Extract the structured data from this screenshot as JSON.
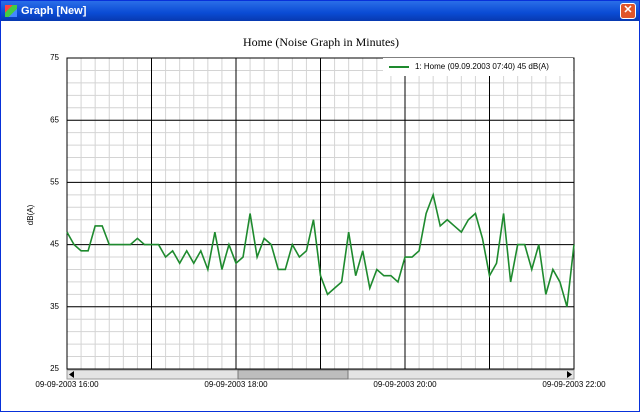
{
  "window": {
    "title": "Graph [New]"
  },
  "chart_data": {
    "type": "line",
    "title": "Home (Noise Graph in Minutes)",
    "y_label": "dB(A)",
    "x": [
      960,
      965,
      970,
      975,
      980,
      985,
      990,
      995,
      1000,
      1005,
      1010,
      1015,
      1020,
      1025,
      1030,
      1035,
      1040,
      1045,
      1050,
      1055,
      1060,
      1065,
      1070,
      1075,
      1080,
      1085,
      1090,
      1095,
      1100,
      1105,
      1110,
      1115,
      1120,
      1125,
      1130,
      1135,
      1140,
      1145,
      1150,
      1155,
      1160,
      1165,
      1170,
      1175,
      1180,
      1185,
      1190,
      1195,
      1200,
      1205,
      1210,
      1215,
      1220,
      1225,
      1230,
      1235,
      1240,
      1245,
      1250,
      1255,
      1260,
      1265,
      1270,
      1275,
      1280,
      1285,
      1290,
      1295,
      1300,
      1305,
      1310,
      1315,
      1320
    ],
    "series": [
      {
        "name": "1: Home  (09.09.2003 07:40) 45 dB(A)",
        "color": "#1e8a2e",
        "values": [
          47,
          45,
          44,
          44,
          48,
          48,
          45,
          45,
          45,
          45,
          46,
          45,
          45,
          45,
          43,
          44,
          42,
          44,
          42,
          44,
          41,
          47,
          41,
          45,
          42,
          43,
          50,
          43,
          46,
          45,
          41,
          41,
          45,
          43,
          44,
          49,
          40,
          37,
          38,
          39,
          47,
          40,
          44,
          38,
          41,
          40,
          40,
          39,
          43,
          43,
          44,
          50,
          53,
          48,
          49,
          48,
          47,
          49,
          50,
          46,
          40,
          42,
          50,
          39,
          45,
          45,
          41,
          45,
          37,
          41,
          39,
          35,
          45
        ]
      }
    ],
    "xlim": [
      960,
      1320
    ],
    "xticks": [
      {
        "value": 960,
        "label": "09-09-2003 16:00"
      },
      {
        "value": 1080,
        "label": "09-09-2003 18:00"
      },
      {
        "value": 1200,
        "label": "09-09-2003 20:00"
      },
      {
        "value": 1320,
        "label": "09-09-2003 22:00"
      }
    ],
    "ylim": [
      25,
      75
    ],
    "yticks": [
      25,
      35,
      45,
      55,
      65,
      75
    ],
    "grid": true,
    "legend": "top-right"
  }
}
